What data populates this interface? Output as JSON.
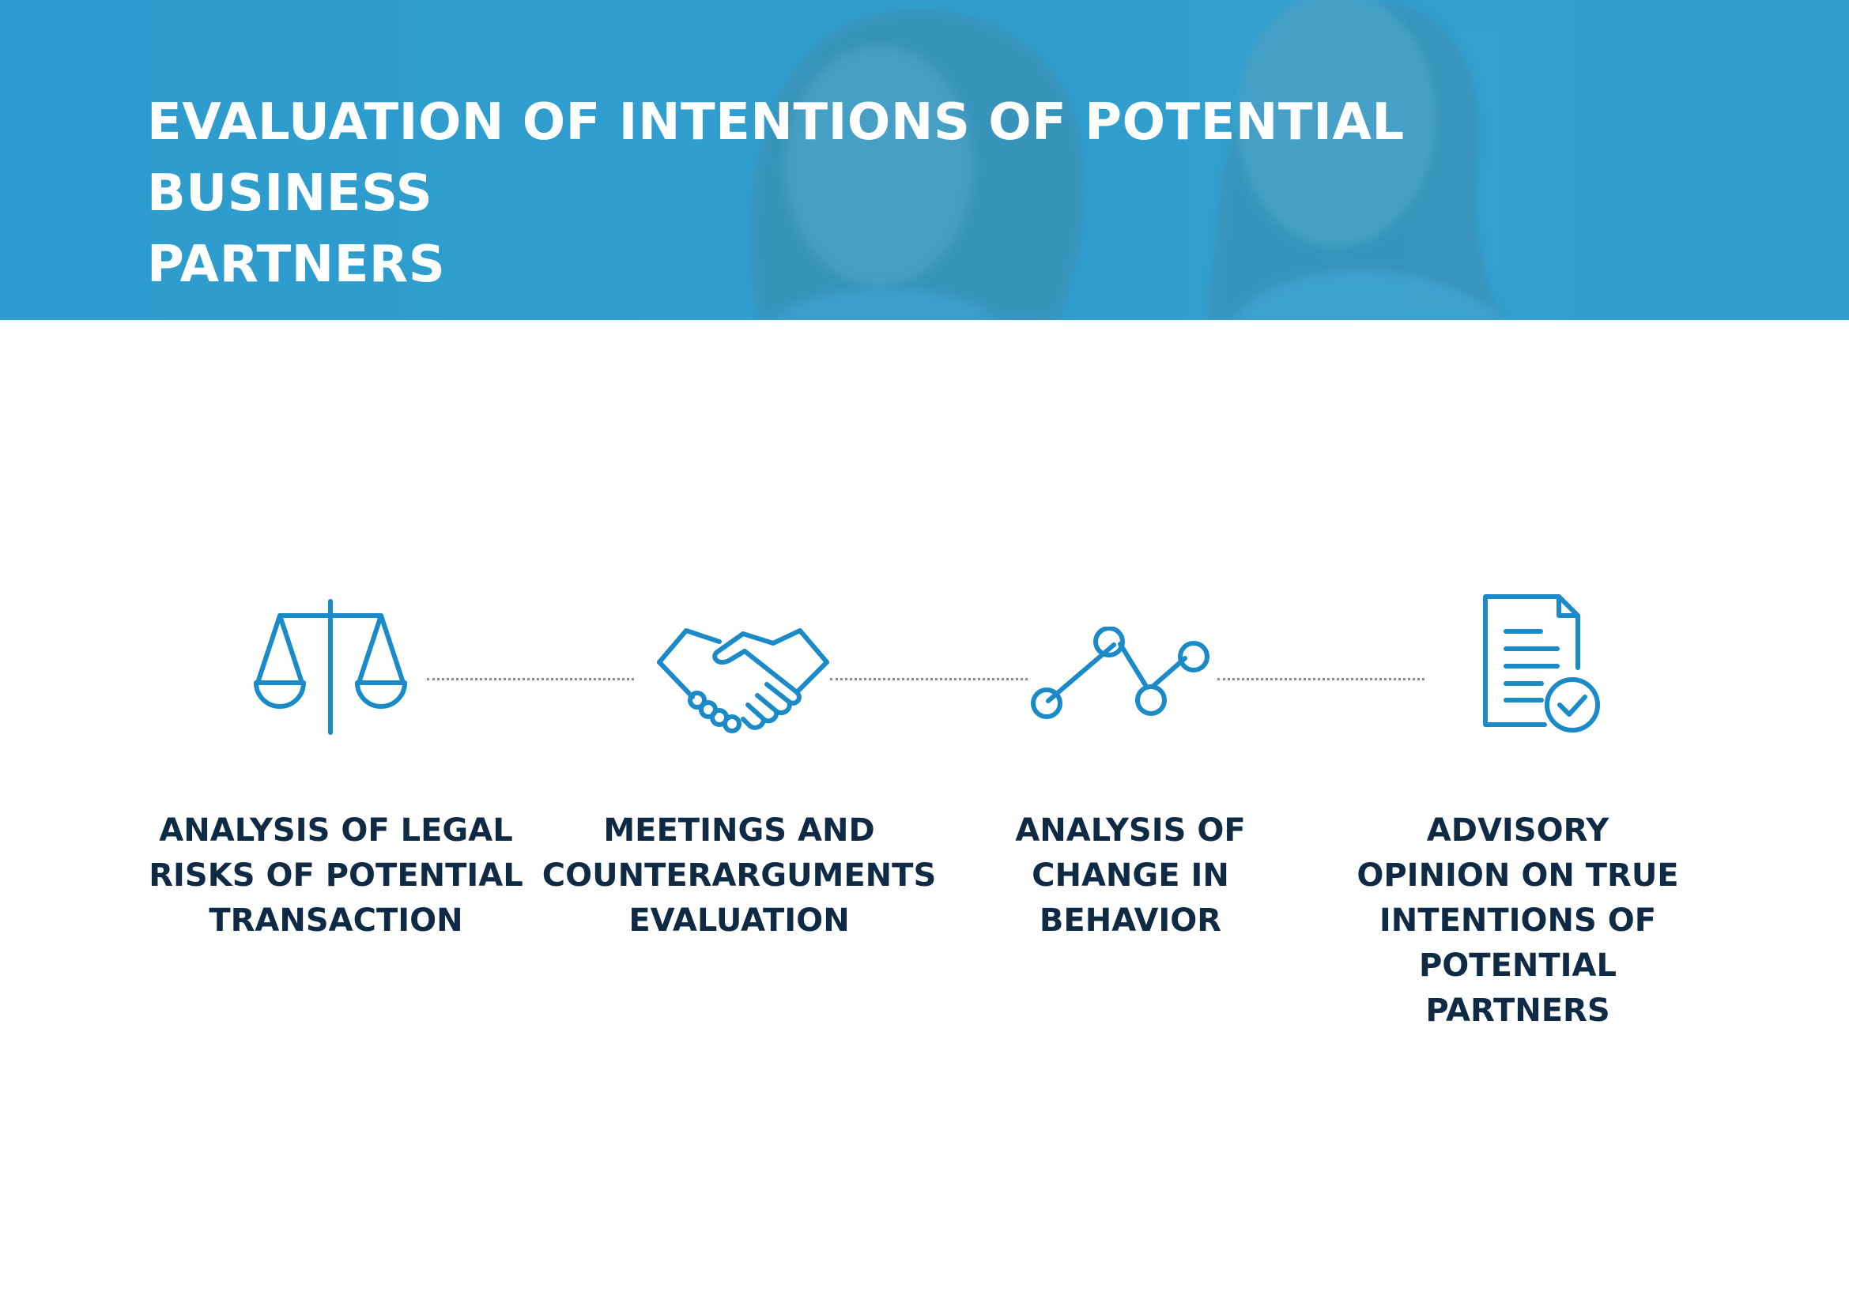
{
  "header": {
    "title": "EVALUATION OF INTENTIONS OF POTENTIAL BUSINESS\nPARTNERS"
  },
  "steps": [
    {
      "icon": "scales-icon",
      "label": "ANALYSIS OF LEGAL\nRISKS OF POTENTIAL\nTRANSACTION"
    },
    {
      "icon": "handshake-icon",
      "label": "MEETINGS AND\nCOUNTERARGUMENTS\nEVALUATION"
    },
    {
      "icon": "line-graph-icon",
      "label": "ANALYSIS OF\nCHANGE IN\nBEHAVIOR"
    },
    {
      "icon": "document-check-icon",
      "label": "ADVISORY\nOPINION ON TRUE\nINTENTIONS OF\nPOTENTIAL\nPARTNERS"
    }
  ],
  "colors": {
    "banner": "#3aa3d1",
    "icon": "#1a8bc8",
    "label": "#0f2a44",
    "connector": "#8a8a8a"
  }
}
